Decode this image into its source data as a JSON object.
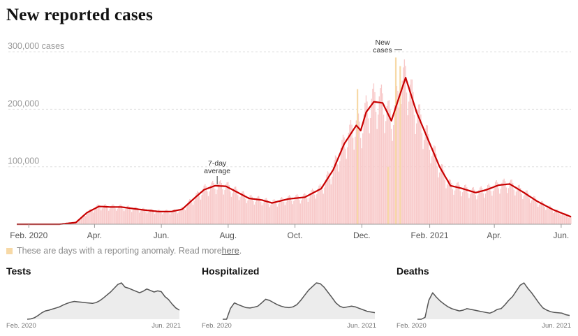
{
  "title": "New reported cases",
  "note": {
    "text": "These are days with a reporting anomaly. Read more ",
    "link": "here",
    "period": ".",
    "swatch_color": "#f7d9a6"
  },
  "annotations": {
    "new_cases": [
      "New",
      "cases"
    ],
    "avg": [
      "7-day",
      "average"
    ]
  },
  "chart_data": {
    "type": "bar",
    "units_label": "cases",
    "bar_color": "#f8c9c9",
    "anomaly_color": "#f7d9a6",
    "line_color": "#c80000",
    "yticks": [
      100000,
      200000,
      300000
    ],
    "ytick_labels": [
      "100,000",
      "200,000",
      "300,000 cases"
    ],
    "ylim": [
      0,
      305000
    ],
    "xticks": [
      {
        "date": "2020-02-01",
        "label": "Feb. 2020"
      },
      {
        "date": "2020-04-01",
        "label": "Apr."
      },
      {
        "date": "2020-06-01",
        "label": "Jun."
      },
      {
        "date": "2020-08-01",
        "label": "Aug."
      },
      {
        "date": "2020-10-01",
        "label": "Oct."
      },
      {
        "date": "2020-12-01",
        "label": "Dec."
      },
      {
        "date": "2021-02-01",
        "label": "Feb. 2021"
      },
      {
        "date": "2021-04-01",
        "label": "Apr."
      },
      {
        "date": "2021-06-01",
        "label": "Jun."
      }
    ],
    "xrange": [
      "2020-01-21",
      "2021-06-10"
    ],
    "average_series": {
      "name": "7-day average",
      "points": [
        [
          "2020-01-21",
          0
        ],
        [
          "2020-02-29",
          0
        ],
        [
          "2020-03-15",
          3000
        ],
        [
          "2020-03-25",
          20000
        ],
        [
          "2020-04-05",
          31000
        ],
        [
          "2020-04-15",
          30000
        ],
        [
          "2020-04-25",
          30000
        ],
        [
          "2020-05-15",
          25000
        ],
        [
          "2020-05-30",
          22000
        ],
        [
          "2020-06-10",
          22000
        ],
        [
          "2020-06-20",
          26000
        ],
        [
          "2020-07-01",
          45000
        ],
        [
          "2020-07-10",
          60000
        ],
        [
          "2020-07-20",
          67000
        ],
        [
          "2020-07-30",
          66000
        ],
        [
          "2020-08-10",
          55000
        ],
        [
          "2020-08-20",
          45000
        ],
        [
          "2020-09-01",
          42000
        ],
        [
          "2020-09-10",
          37000
        ],
        [
          "2020-09-25",
          44000
        ],
        [
          "2020-10-10",
          47000
        ],
        [
          "2020-10-25",
          62000
        ],
        [
          "2020-11-05",
          95000
        ],
        [
          "2020-11-15",
          140000
        ],
        [
          "2020-11-26",
          172000
        ],
        [
          "2020-11-30",
          163000
        ],
        [
          "2020-12-05",
          195000
        ],
        [
          "2020-12-12",
          213000
        ],
        [
          "2020-12-20",
          211000
        ],
        [
          "2020-12-28",
          180000
        ],
        [
          "2021-01-03",
          215000
        ],
        [
          "2021-01-10",
          255000
        ],
        [
          "2021-01-20",
          195000
        ],
        [
          "2021-01-31",
          145000
        ],
        [
          "2021-02-10",
          100000
        ],
        [
          "2021-02-20",
          67000
        ],
        [
          "2021-03-01",
          63000
        ],
        [
          "2021-03-15",
          55000
        ],
        [
          "2021-03-25",
          60000
        ],
        [
          "2021-04-05",
          68000
        ],
        [
          "2021-04-15",
          70000
        ],
        [
          "2021-04-28",
          55000
        ],
        [
          "2021-05-10",
          40000
        ],
        [
          "2021-05-25",
          25000
        ],
        [
          "2021-06-10",
          13000
        ]
      ]
    },
    "anomaly_days": [
      {
        "date": "2020-11-27",
        "value": 235000
      },
      {
        "date": "2020-12-25",
        "value": 100000
      },
      {
        "date": "2021-01-01",
        "value": 290000
      },
      {
        "date": "2021-01-05",
        "value": 275000
      }
    ]
  },
  "small_multiples": [
    {
      "title": "Tests",
      "start_label": "Feb. 2020",
      "end_label": "Jun. 2021",
      "series": [
        0,
        1,
        4,
        10,
        17,
        22,
        24,
        27,
        30,
        33,
        38,
        42,
        45,
        47,
        46,
        45,
        44,
        43,
        42,
        44,
        49,
        56,
        64,
        72,
        82,
        92,
        96,
        85,
        82,
        78,
        74,
        70,
        74,
        80,
        76,
        72,
        75,
        73,
        60,
        52,
        40,
        30,
        24
      ]
    },
    {
      "title": "Hospitalized",
      "start_label": "Feb. 2020",
      "end_label": "Jun. 2021",
      "series": [
        0,
        0,
        30,
        45,
        40,
        36,
        32,
        31,
        33,
        36,
        45,
        55,
        52,
        46,
        40,
        36,
        33,
        32,
        34,
        40,
        52,
        66,
        80,
        90,
        100,
        98,
        88,
        74,
        60,
        45,
        36,
        32,
        34,
        36,
        34,
        30,
        26,
        22,
        20,
        18
      ]
    },
    {
      "title": "Deaths",
      "start_label": "Feb. 2020",
      "end_label": "Jun. 2021",
      "series": [
        0,
        0,
        5,
        50,
        70,
        58,
        48,
        40,
        33,
        28,
        25,
        22,
        24,
        28,
        26,
        24,
        22,
        20,
        18,
        16,
        20,
        26,
        28,
        38,
        50,
        60,
        75,
        90,
        96,
        82,
        70,
        56,
        42,
        30,
        24,
        20,
        18,
        17,
        16,
        12,
        10
      ]
    }
  ]
}
